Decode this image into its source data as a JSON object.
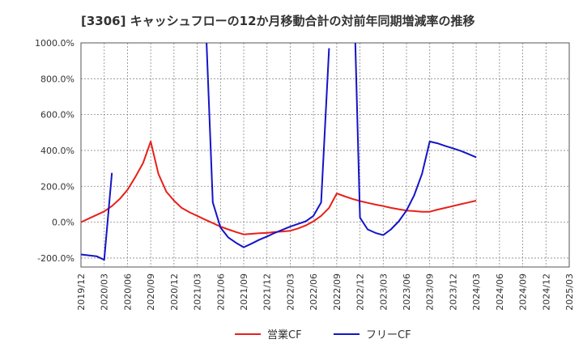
{
  "chart_data": {
    "type": "line",
    "title": "[3306]  キャッシュフローの12か月移動合計の対前年同期増減率の推移",
    "xlabel": "",
    "ylabel": "",
    "ylim": [
      -250,
      1000
    ],
    "yticks": [
      1000,
      800,
      600,
      400,
      200,
      0,
      -200
    ],
    "ytick_labels": [
      "1000.0%",
      "800.0%",
      "600.0%",
      "400.0%",
      "200.0%",
      "0.0%",
      "-200.0%"
    ],
    "x_tick_labels": [
      "2019/12",
      "2020/03",
      "2020/06",
      "2020/09",
      "2020/12",
      "2021/03",
      "2021/06",
      "2021/09",
      "2021/12",
      "2022/03",
      "2022/06",
      "2022/09",
      "2022/12",
      "2023/03",
      "2023/06",
      "2023/09",
      "2023/12",
      "2024/03",
      "2024/06",
      "2024/09",
      "2024/12",
      "2025/03"
    ],
    "grid": true,
    "legend_position": "bottom",
    "series": [
      {
        "name": "営業CF",
        "color": "#e8201a",
        "points": [
          [
            0,
            0
          ],
          [
            0.33,
            20
          ],
          [
            0.67,
            40
          ],
          [
            1,
            60
          ],
          [
            1.33,
            90
          ],
          [
            1.67,
            130
          ],
          [
            2,
            180
          ],
          [
            2.33,
            250
          ],
          [
            2.67,
            330
          ],
          [
            3,
            450
          ],
          [
            3.33,
            270
          ],
          [
            3.67,
            170
          ],
          [
            4,
            120
          ],
          [
            4.33,
            80
          ],
          [
            4.67,
            55
          ],
          [
            5,
            35
          ],
          [
            5.33,
            15
          ],
          [
            5.67,
            -5
          ],
          [
            6,
            -25
          ],
          [
            6.33,
            -40
          ],
          [
            6.67,
            -55
          ],
          [
            7,
            -68
          ],
          [
            7.67,
            -62
          ],
          [
            8,
            -60
          ],
          [
            8.33,
            -55
          ],
          [
            8.67,
            -52
          ],
          [
            9,
            -48
          ],
          [
            9.33,
            -35
          ],
          [
            9.67,
            -18
          ],
          [
            10,
            5
          ],
          [
            10.33,
            35
          ],
          [
            10.67,
            80
          ],
          [
            11,
            160
          ],
          [
            11.33,
            145
          ],
          [
            11.67,
            130
          ],
          [
            12,
            118
          ],
          [
            12.33,
            108
          ],
          [
            12.67,
            98
          ],
          [
            13,
            90
          ],
          [
            13.33,
            80
          ],
          [
            13.67,
            72
          ],
          [
            14,
            65
          ],
          [
            14.33,
            62
          ],
          [
            14.67,
            58
          ],
          [
            15,
            58
          ],
          [
            15.33,
            70
          ],
          [
            15.67,
            80
          ],
          [
            16,
            90
          ],
          [
            16.33,
            100
          ],
          [
            16.67,
            110
          ],
          [
            17,
            120
          ]
        ]
      },
      {
        "name": "フリーCF",
        "color": "#1414c8",
        "segments": [
          [
            [
              0,
              -180
            ],
            [
              0.33,
              -185
            ],
            [
              0.67,
              -190
            ],
            [
              1,
              -210
            ],
            [
              1.33,
              275
            ]
          ],
          [
            [
              5.4,
              1000
            ],
            [
              5.67,
              110
            ],
            [
              6,
              -30
            ],
            [
              6.33,
              -85
            ],
            [
              6.67,
              -115
            ],
            [
              7,
              -140
            ],
            [
              7.33,
              -120
            ],
            [
              7.67,
              -98
            ],
            [
              8,
              -80
            ],
            [
              8.33,
              -60
            ],
            [
              8.67,
              -42
            ],
            [
              9,
              -25
            ],
            [
              9.33,
              -10
            ],
            [
              9.67,
              5
            ],
            [
              10,
              35
            ],
            [
              10.33,
              110
            ],
            [
              10.67,
              970
            ]
          ],
          [
            [
              11.8,
              1000
            ],
            [
              12,
              25
            ],
            [
              12.33,
              -40
            ],
            [
              12.67,
              -60
            ],
            [
              13,
              -72
            ],
            [
              13.33,
              -40
            ],
            [
              13.67,
              5
            ],
            [
              14,
              65
            ],
            [
              14.33,
              150
            ],
            [
              14.67,
              270
            ],
            [
              15,
              450
            ],
            [
              15.33,
              440
            ],
            [
              15.67,
              425
            ],
            [
              16,
              412
            ],
            [
              16.33,
              398
            ],
            [
              16.67,
              380
            ],
            [
              17,
              362
            ]
          ]
        ]
      }
    ]
  }
}
